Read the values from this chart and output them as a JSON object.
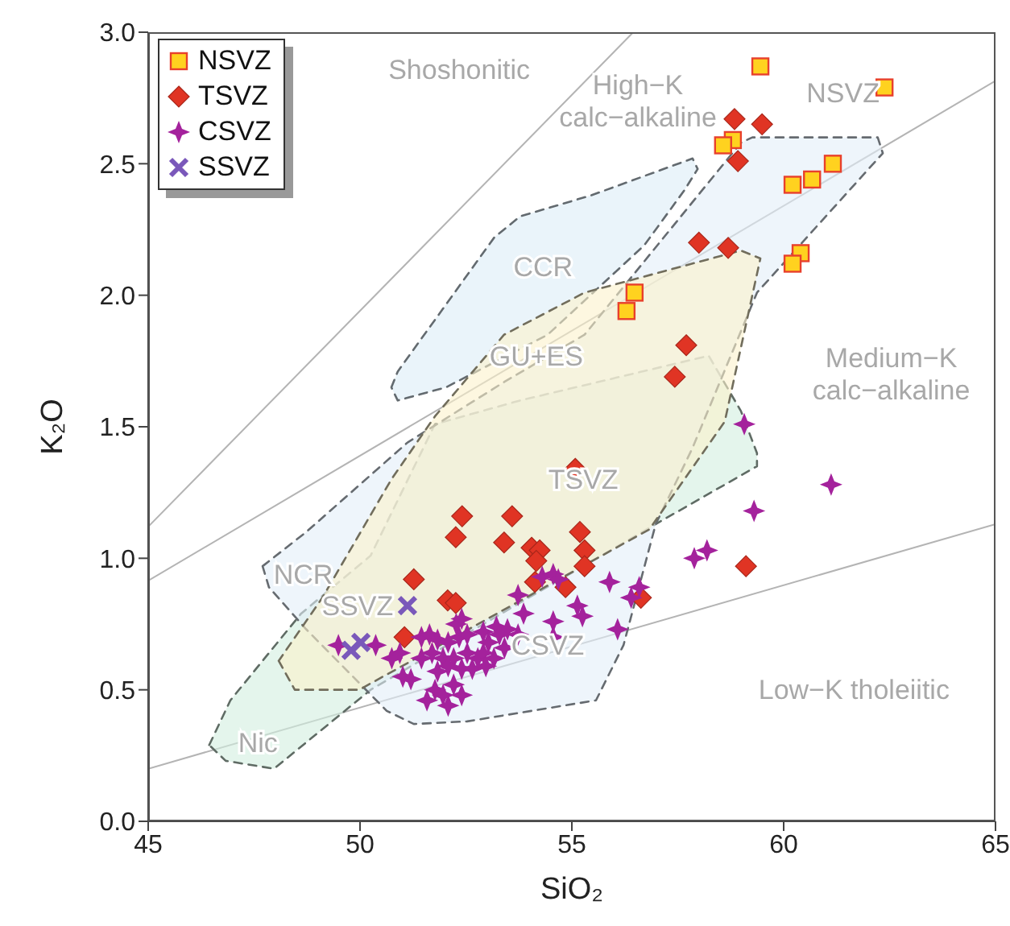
{
  "chart_data": {
    "type": "scatter",
    "xlabel": "SiO₂",
    "ylabel": "K₂O",
    "xlim": [
      45,
      65
    ],
    "ylim": [
      0,
      3
    ],
    "xticks": [
      45,
      50,
      55,
      60,
      65
    ],
    "yticks": [
      {
        "value": 0,
        "label": "0.0"
      },
      {
        "value": 0.5,
        "label": "0.5"
      },
      {
        "value": 1,
        "label": "1.0"
      },
      {
        "value": 1.5,
        "label": "1.5"
      },
      {
        "value": 2,
        "label": "2.0"
      },
      {
        "value": 2.5,
        "label": "2.5"
      },
      {
        "value": 3,
        "label": "3.0"
      }
    ],
    "legend": "top left",
    "series": [
      {
        "type": "line",
        "color": "#b4b4b4",
        "x": [
          45,
          56.45
        ],
        "values": [
          1.12,
          3.0
        ]
      },
      {
        "type": "line",
        "color": "#b4b4b4",
        "x": [
          45,
          65
        ],
        "values": [
          0.915,
          2.815
        ]
      },
      {
        "type": "line",
        "color": "#b4b4b4",
        "x": [
          45,
          65
        ],
        "values": [
          0.2,
          1.13
        ]
      },
      {
        "type": "area",
        "color": "#d2eedf",
        "line_style": "dashed",
        "x": [
          46.44,
          46.94,
          48.61,
          50.25,
          51.77,
          53.78,
          58.23,
          58.99,
          59.37,
          59.37,
          56.98,
          52.91,
          50.25,
          47.97,
          46.83
        ],
        "values": [
          0.29,
          0.46,
          0.79,
          1.01,
          1.51,
          1.6,
          1.77,
          1.56,
          1.4,
          1.35,
          1.13,
          0.75,
          0.5,
          0.2,
          0.23
        ]
      },
      {
        "type": "area",
        "color": "#e2eef8",
        "line_style": "dashed",
        "x": [
          47.7,
          48.73,
          51.12,
          53.4,
          55.3,
          58.99,
          59.26,
          62.22,
          62.34,
          59.37,
          57.85,
          56.98,
          56.22,
          55.57,
          52.53,
          51.27,
          50.63,
          48.73,
          47.85
        ],
        "values": [
          0.97,
          1.1,
          1.44,
          1.67,
          1.85,
          2.58,
          2.6,
          2.6,
          2.54,
          2.01,
          1.42,
          1.13,
          0.67,
          0.46,
          0.38,
          0.37,
          0.42,
          0.73,
          0.89
        ]
      },
      {
        "type": "area",
        "color": "#dcecf6",
        "line_style": "dashed",
        "x": [
          50.74,
          50.89,
          53.17,
          53.78,
          55.46,
          57.85,
          57.97,
          57.66,
          56.71,
          54.43,
          52.03,
          50.89
        ],
        "values": [
          1.65,
          1.71,
          2.22,
          2.3,
          2.38,
          2.52,
          2.48,
          2.4,
          2.19,
          1.85,
          1.65,
          1.6
        ]
      },
      {
        "type": "area",
        "color": "#fcf2cc",
        "line_style": "dashed",
        "x": [
          48.08,
          48.46,
          49.98,
          56.83,
          58.61,
          59.45,
          58.99,
          55.3,
          53.4,
          51.77,
          50.74,
          49.11
        ],
        "values": [
          0.61,
          0.5,
          0.5,
          1.11,
          1.52,
          2.14,
          2.17,
          2.01,
          1.85,
          1.54,
          1.3,
          0.85
        ]
      },
      {
        "name": "NSVZ",
        "color": "#ffd21f",
        "marker": "square",
        "x": [
          59.45,
          62.38,
          58.8,
          58.57,
          61.16,
          60.67,
          60.21,
          60.4,
          60.21,
          56.48,
          56.29
        ],
        "values": [
          2.87,
          2.79,
          2.59,
          2.57,
          2.5,
          2.44,
          2.42,
          2.16,
          2.12,
          2.01,
          1.94
        ]
      },
      {
        "name": "TSVZ",
        "color": "#e03424",
        "marker": "diamond",
        "x": [
          58.84,
          59.49,
          58.92,
          58.0,
          58.69,
          57.7,
          57.43,
          55.08,
          52.41,
          53.59,
          52.26,
          53.4,
          54.05,
          54.24,
          54.16,
          55.19,
          55.3,
          55.3,
          51.27,
          54.13,
          54.85,
          52.07,
          52.26,
          51.05,
          59.11,
          56.63
        ],
        "values": [
          2.67,
          2.65,
          2.51,
          2.2,
          2.18,
          1.81,
          1.69,
          1.34,
          1.16,
          1.16,
          1.08,
          1.06,
          1.04,
          1.03,
          0.99,
          1.1,
          1.03,
          0.97,
          0.92,
          0.91,
          0.89,
          0.84,
          0.83,
          0.7,
          0.97,
          0.85
        ]
      },
      {
        "name": "CSVZ",
        "color": "#a4229c",
        "marker": "star",
        "x": [
          49.49,
          50.37,
          50.75,
          50.94,
          51.45,
          51.64,
          51.83,
          52.08,
          52.34,
          52.27,
          52.4,
          51.45,
          51.7,
          51.96,
          52.21,
          52.53,
          52.78,
          52.53,
          52.91,
          53.22,
          53.48,
          53.73,
          53.29,
          53.03,
          52.91,
          53.16,
          53.41,
          52.4,
          52.65,
          52.97,
          51.83,
          52.08,
          51.01,
          51.2,
          51.58,
          51.77,
          51.96,
          52.21,
          52.4,
          52.08,
          53.73,
          53.86,
          54.3,
          54.56,
          54.68,
          54.56,
          54.56,
          55.13,
          55.25,
          55.89,
          56.4,
          56.59,
          56.08,
          59.07,
          61.12,
          59.3,
          57.89,
          58.19
        ],
        "values": [
          0.67,
          0.67,
          0.62,
          0.64,
          0.7,
          0.71,
          0.69,
          0.68,
          0.7,
          0.75,
          0.77,
          0.62,
          0.64,
          0.62,
          0.62,
          0.64,
          0.62,
          0.71,
          0.72,
          0.74,
          0.73,
          0.71,
          0.71,
          0.68,
          0.64,
          0.62,
          0.66,
          0.58,
          0.58,
          0.59,
          0.57,
          0.59,
          0.55,
          0.54,
          0.46,
          0.5,
          0.48,
          0.52,
          0.48,
          0.44,
          0.86,
          0.79,
          0.93,
          0.94,
          0.92,
          0.76,
          0.7,
          0.82,
          0.78,
          0.91,
          0.85,
          0.89,
          0.73,
          1.51,
          1.28,
          1.18,
          1.0,
          1.03
        ]
      },
      {
        "name": "SSVZ",
        "color": "#7a58ba",
        "marker": "cross",
        "x": [
          51.12,
          49.79,
          50.02
        ],
        "values": [
          0.82,
          0.65,
          0.68
        ]
      }
    ],
    "annotations": [
      "Shoshonitic",
      "High−K\ncalc−alkaline",
      "Medium−K\ncalc−alkaline",
      "Low−K tholeiitic",
      "CCR",
      {
        "text": "GU+ES",
        "x": 54.16,
        "y": 1.77
      },
      "NCR",
      {
        "text": "Nic",
        "x": 47.59,
        "y": 0.3
      },
      "SSVZ",
      {
        "text": "CSVZ",
        "x": 54.43,
        "y": 0.67
      },
      {
        "text": "TSVZ",
        "x": 55.27,
        "y": 1.3
      },
      "NSVZ"
    ]
  }
}
